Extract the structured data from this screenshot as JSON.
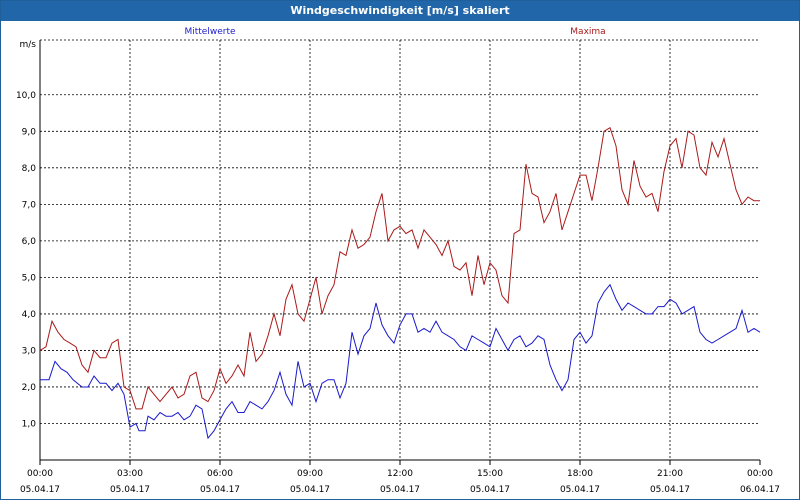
{
  "window": {
    "title": "Windgeschwindigkeit [m/s] skaliert"
  },
  "colors": {
    "titlebar": "#2166a8",
    "mittelwerte": "#1a1acc",
    "maxima": "#aa1a1a",
    "grid": "#000000"
  },
  "chart_data": {
    "type": "line",
    "title": "Windgeschwindigkeit [m/s] skaliert",
    "ylabel": "m/s",
    "ylim": [
      0,
      11.5
    ],
    "yticks": [
      "1,0",
      "2,0",
      "3,0",
      "4,0",
      "5,0",
      "6,0",
      "7,0",
      "8,0",
      "9,0",
      "10,0"
    ],
    "xlim": [
      0,
      24
    ],
    "xticks": [
      {
        "time": "00:00",
        "date": "05.04.17"
      },
      {
        "time": "03:00",
        "date": "05.04.17"
      },
      {
        "time": "06:00",
        "date": "05.04.17"
      },
      {
        "time": "09:00",
        "date": "05.04.17"
      },
      {
        "time": "12:00",
        "date": "05.04.17"
      },
      {
        "time": "15:00",
        "date": "05.04.17"
      },
      {
        "time": "18:00",
        "date": "05.04.17"
      },
      {
        "time": "21:00",
        "date": "05.04.17"
      },
      {
        "time": "00:00",
        "date": "06.04.17"
      }
    ],
    "grid": true,
    "series": [
      {
        "name": "Mittelwerte",
        "color": "#1a1acc",
        "points": [
          [
            0,
            2.2
          ],
          [
            0.3,
            2.2
          ],
          [
            0.5,
            2.7
          ],
          [
            0.7,
            2.5
          ],
          [
            0.9,
            2.4
          ],
          [
            1.1,
            2.2
          ],
          [
            1.4,
            2.0
          ],
          [
            1.6,
            2.0
          ],
          [
            1.8,
            2.3
          ],
          [
            2.0,
            2.1
          ],
          [
            2.2,
            2.1
          ],
          [
            2.4,
            1.9
          ],
          [
            2.6,
            2.1
          ],
          [
            2.8,
            1.8
          ],
          [
            3.0,
            0.9
          ],
          [
            3.2,
            1.0
          ],
          [
            3.3,
            0.8
          ],
          [
            3.5,
            0.8
          ],
          [
            3.6,
            1.2
          ],
          [
            3.8,
            1.1
          ],
          [
            4.0,
            1.3
          ],
          [
            4.2,
            1.2
          ],
          [
            4.4,
            1.2
          ],
          [
            4.6,
            1.3
          ],
          [
            4.8,
            1.1
          ],
          [
            5.0,
            1.2
          ],
          [
            5.2,
            1.5
          ],
          [
            5.4,
            1.4
          ],
          [
            5.6,
            0.6
          ],
          [
            5.8,
            0.8
          ],
          [
            6.0,
            1.1
          ],
          [
            6.2,
            1.4
          ],
          [
            6.4,
            1.6
          ],
          [
            6.6,
            1.3
          ],
          [
            6.8,
            1.3
          ],
          [
            7.0,
            1.6
          ],
          [
            7.2,
            1.5
          ],
          [
            7.4,
            1.4
          ],
          [
            7.6,
            1.6
          ],
          [
            7.8,
            1.9
          ],
          [
            8.0,
            2.4
          ],
          [
            8.2,
            1.8
          ],
          [
            8.4,
            1.5
          ],
          [
            8.6,
            2.7
          ],
          [
            8.8,
            2.0
          ],
          [
            9.0,
            2.1
          ],
          [
            9.2,
            1.6
          ],
          [
            9.4,
            2.1
          ],
          [
            9.6,
            2.2
          ],
          [
            9.8,
            2.2
          ],
          [
            10.0,
            1.7
          ],
          [
            10.2,
            2.1
          ],
          [
            10.4,
            3.5
          ],
          [
            10.6,
            2.9
          ],
          [
            10.8,
            3.4
          ],
          [
            11.0,
            3.6
          ],
          [
            11.2,
            4.3
          ],
          [
            11.4,
            3.7
          ],
          [
            11.6,
            3.4
          ],
          [
            11.8,
            3.2
          ],
          [
            12.0,
            3.7
          ],
          [
            12.2,
            4.0
          ],
          [
            12.4,
            4.0
          ],
          [
            12.6,
            3.5
          ],
          [
            12.8,
            3.6
          ],
          [
            13.0,
            3.5
          ],
          [
            13.2,
            3.8
          ],
          [
            13.4,
            3.5
          ],
          [
            13.6,
            3.4
          ],
          [
            13.8,
            3.3
          ],
          [
            14.0,
            3.1
          ],
          [
            14.2,
            3.0
          ],
          [
            14.4,
            3.4
          ],
          [
            14.6,
            3.3
          ],
          [
            14.8,
            3.2
          ],
          [
            15.0,
            3.1
          ],
          [
            15.2,
            3.6
          ],
          [
            15.4,
            3.3
          ],
          [
            15.6,
            3.0
          ],
          [
            15.8,
            3.3
          ],
          [
            16.0,
            3.4
          ],
          [
            16.2,
            3.1
          ],
          [
            16.4,
            3.2
          ],
          [
            16.6,
            3.4
          ],
          [
            16.8,
            3.3
          ],
          [
            17.0,
            2.6
          ],
          [
            17.2,
            2.2
          ],
          [
            17.4,
            1.9
          ],
          [
            17.6,
            2.2
          ],
          [
            17.8,
            3.3
          ],
          [
            18.0,
            3.5
          ],
          [
            18.2,
            3.2
          ],
          [
            18.4,
            3.4
          ],
          [
            18.6,
            4.3
          ],
          [
            18.8,
            4.6
          ],
          [
            19.0,
            4.8
          ],
          [
            19.2,
            4.4
          ],
          [
            19.4,
            4.1
          ],
          [
            19.6,
            4.3
          ],
          [
            19.8,
            4.2
          ],
          [
            20.0,
            4.1
          ],
          [
            20.2,
            4.0
          ],
          [
            20.4,
            4.0
          ],
          [
            20.6,
            4.2
          ],
          [
            20.8,
            4.2
          ],
          [
            21.0,
            4.4
          ],
          [
            21.2,
            4.3
          ],
          [
            21.4,
            4.0
          ],
          [
            21.6,
            4.1
          ],
          [
            21.8,
            4.2
          ],
          [
            22.0,
            3.5
          ],
          [
            22.2,
            3.3
          ],
          [
            22.4,
            3.2
          ],
          [
            22.6,
            3.3
          ],
          [
            22.8,
            3.4
          ],
          [
            23.0,
            3.5
          ],
          [
            23.2,
            3.6
          ],
          [
            23.4,
            4.1
          ],
          [
            23.6,
            3.5
          ],
          [
            23.8,
            3.6
          ],
          [
            24.0,
            3.5
          ]
        ]
      },
      {
        "name": "Maxima",
        "color": "#aa1a1a",
        "points": [
          [
            0,
            3.0
          ],
          [
            0.2,
            3.1
          ],
          [
            0.4,
            3.8
          ],
          [
            0.6,
            3.5
          ],
          [
            0.8,
            3.3
          ],
          [
            1.0,
            3.2
          ],
          [
            1.2,
            3.1
          ],
          [
            1.4,
            2.6
          ],
          [
            1.6,
            2.4
          ],
          [
            1.8,
            3.0
          ],
          [
            2.0,
            2.8
          ],
          [
            2.2,
            2.8
          ],
          [
            2.4,
            3.2
          ],
          [
            2.6,
            3.3
          ],
          [
            2.8,
            2.0
          ],
          [
            3.0,
            1.9
          ],
          [
            3.2,
            1.4
          ],
          [
            3.4,
            1.4
          ],
          [
            3.6,
            2.0
          ],
          [
            3.8,
            1.8
          ],
          [
            4.0,
            1.6
          ],
          [
            4.2,
            1.8
          ],
          [
            4.4,
            2.0
          ],
          [
            4.6,
            1.7
          ],
          [
            4.8,
            1.8
          ],
          [
            5.0,
            2.3
          ],
          [
            5.2,
            2.4
          ],
          [
            5.4,
            1.7
          ],
          [
            5.6,
            1.6
          ],
          [
            5.8,
            1.9
          ],
          [
            6.0,
            2.5
          ],
          [
            6.2,
            2.1
          ],
          [
            6.4,
            2.3
          ],
          [
            6.6,
            2.6
          ],
          [
            6.8,
            2.3
          ],
          [
            7.0,
            3.5
          ],
          [
            7.2,
            2.7
          ],
          [
            7.4,
            2.9
          ],
          [
            7.6,
            3.4
          ],
          [
            7.8,
            4.0
          ],
          [
            8.0,
            3.4
          ],
          [
            8.2,
            4.4
          ],
          [
            8.4,
            4.8
          ],
          [
            8.6,
            4.0
          ],
          [
            8.8,
            3.8
          ],
          [
            9.0,
            4.4
          ],
          [
            9.2,
            5.0
          ],
          [
            9.4,
            4.0
          ],
          [
            9.6,
            4.5
          ],
          [
            9.8,
            4.8
          ],
          [
            10.0,
            5.7
          ],
          [
            10.2,
            5.6
          ],
          [
            10.4,
            6.3
          ],
          [
            10.6,
            5.8
          ],
          [
            10.8,
            5.9
          ],
          [
            11.0,
            6.1
          ],
          [
            11.2,
            6.8
          ],
          [
            11.4,
            7.3
          ],
          [
            11.6,
            6.0
          ],
          [
            11.8,
            6.3
          ],
          [
            12.0,
            6.4
          ],
          [
            12.2,
            6.2
          ],
          [
            12.4,
            6.3
          ],
          [
            12.6,
            5.8
          ],
          [
            12.8,
            6.3
          ],
          [
            13.0,
            6.1
          ],
          [
            13.2,
            5.9
          ],
          [
            13.4,
            5.6
          ],
          [
            13.6,
            6.0
          ],
          [
            13.8,
            5.3
          ],
          [
            14.0,
            5.2
          ],
          [
            14.2,
            5.4
          ],
          [
            14.4,
            4.5
          ],
          [
            14.6,
            5.6
          ],
          [
            14.8,
            4.8
          ],
          [
            15.0,
            5.4
          ],
          [
            15.2,
            5.2
          ],
          [
            15.4,
            4.5
          ],
          [
            15.6,
            4.3
          ],
          [
            15.8,
            6.2
          ],
          [
            16.0,
            6.3
          ],
          [
            16.2,
            8.1
          ],
          [
            16.4,
            7.3
          ],
          [
            16.6,
            7.2
          ],
          [
            16.8,
            6.5
          ],
          [
            17.0,
            6.8
          ],
          [
            17.2,
            7.3
          ],
          [
            17.4,
            6.3
          ],
          [
            17.6,
            6.8
          ],
          [
            17.8,
            7.3
          ],
          [
            18.0,
            7.8
          ],
          [
            18.2,
            7.8
          ],
          [
            18.4,
            7.1
          ],
          [
            18.6,
            8.0
          ],
          [
            18.8,
            9.0
          ],
          [
            19.0,
            9.1
          ],
          [
            19.2,
            8.6
          ],
          [
            19.4,
            7.4
          ],
          [
            19.6,
            7.0
          ],
          [
            19.8,
            8.2
          ],
          [
            20.0,
            7.5
          ],
          [
            20.2,
            7.2
          ],
          [
            20.4,
            7.3
          ],
          [
            20.6,
            6.8
          ],
          [
            20.8,
            7.9
          ],
          [
            21.0,
            8.6
          ],
          [
            21.2,
            8.8
          ],
          [
            21.4,
            8.0
          ],
          [
            21.6,
            9.0
          ],
          [
            21.8,
            8.9
          ],
          [
            22.0,
            8.0
          ],
          [
            22.2,
            7.8
          ],
          [
            22.4,
            8.7
          ],
          [
            22.6,
            8.3
          ],
          [
            22.8,
            8.8
          ],
          [
            23.0,
            8.1
          ],
          [
            23.2,
            7.4
          ],
          [
            23.4,
            7.0
          ],
          [
            23.6,
            7.2
          ],
          [
            23.8,
            7.1
          ],
          [
            24.0,
            7.1
          ]
        ]
      }
    ]
  }
}
